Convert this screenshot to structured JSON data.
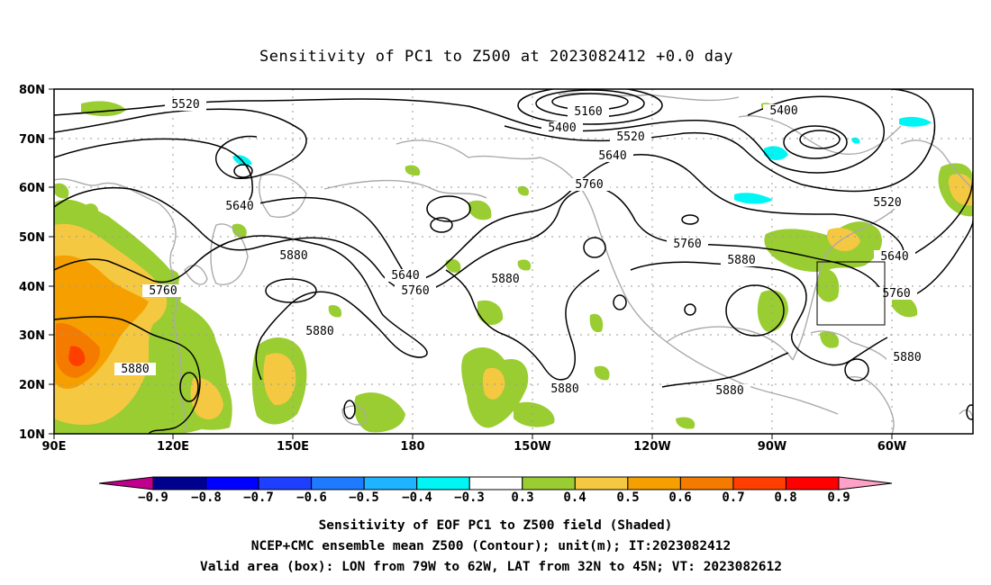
{
  "title": "Sensitivity of PC1 to Z500 at 2023082412 +0.0 day",
  "lat_labels": [
    "80N",
    "70N",
    "60N",
    "50N",
    "40N",
    "30N",
    "20N",
    "10N"
  ],
  "lon_labels": [
    "90E",
    "120E",
    "150E",
    "180",
    "150W",
    "120W",
    "90W",
    "60W"
  ],
  "contour_labels": [
    "5520",
    "5160",
    "5400",
    "5520",
    "5400",
    "5640",
    "5760",
    "5640",
    "5880",
    "5760",
    "5640",
    "5760",
    "5880",
    "5760",
    "5880",
    "5520",
    "5640",
    "5760",
    "5880",
    "5880",
    "5880",
    "5880"
  ],
  "colorbar": {
    "labels": [
      "−0.9",
      "−0.8",
      "−0.7",
      "−0.6",
      "−0.5",
      "−0.4",
      "−0.3",
      "0.3",
      "0.4",
      "0.5",
      "0.6",
      "0.7",
      "0.8",
      "0.9"
    ],
    "colors": [
      "#00008f",
      "#0000ff",
      "#1f3fff",
      "#1e7bff",
      "#1eb4ff",
      "#00f5f5",
      "#ffffff",
      "#9acd32",
      "#f5c842",
      "#f5a000",
      "#f57b00",
      "#ff3f00",
      "#ff0000"
    ],
    "low_extend_color": "#c0008c",
    "high_extend_color": "#ffa0c8"
  },
  "captions": [
    "Sensitivity of EOF PC1 to Z500 field (Shaded)",
    "NCEP+CMC ensemble mean Z500 (Contour); unit(m); IT:2023082412",
    "Valid area (box): LON from 79W to 62W, LAT from 32N to 45N; VT: 2023082612"
  ],
  "valid_box": {
    "lon_w": "79W",
    "lon_e": "62W",
    "lat_s": "32N",
    "lat_n": "45N"
  }
}
